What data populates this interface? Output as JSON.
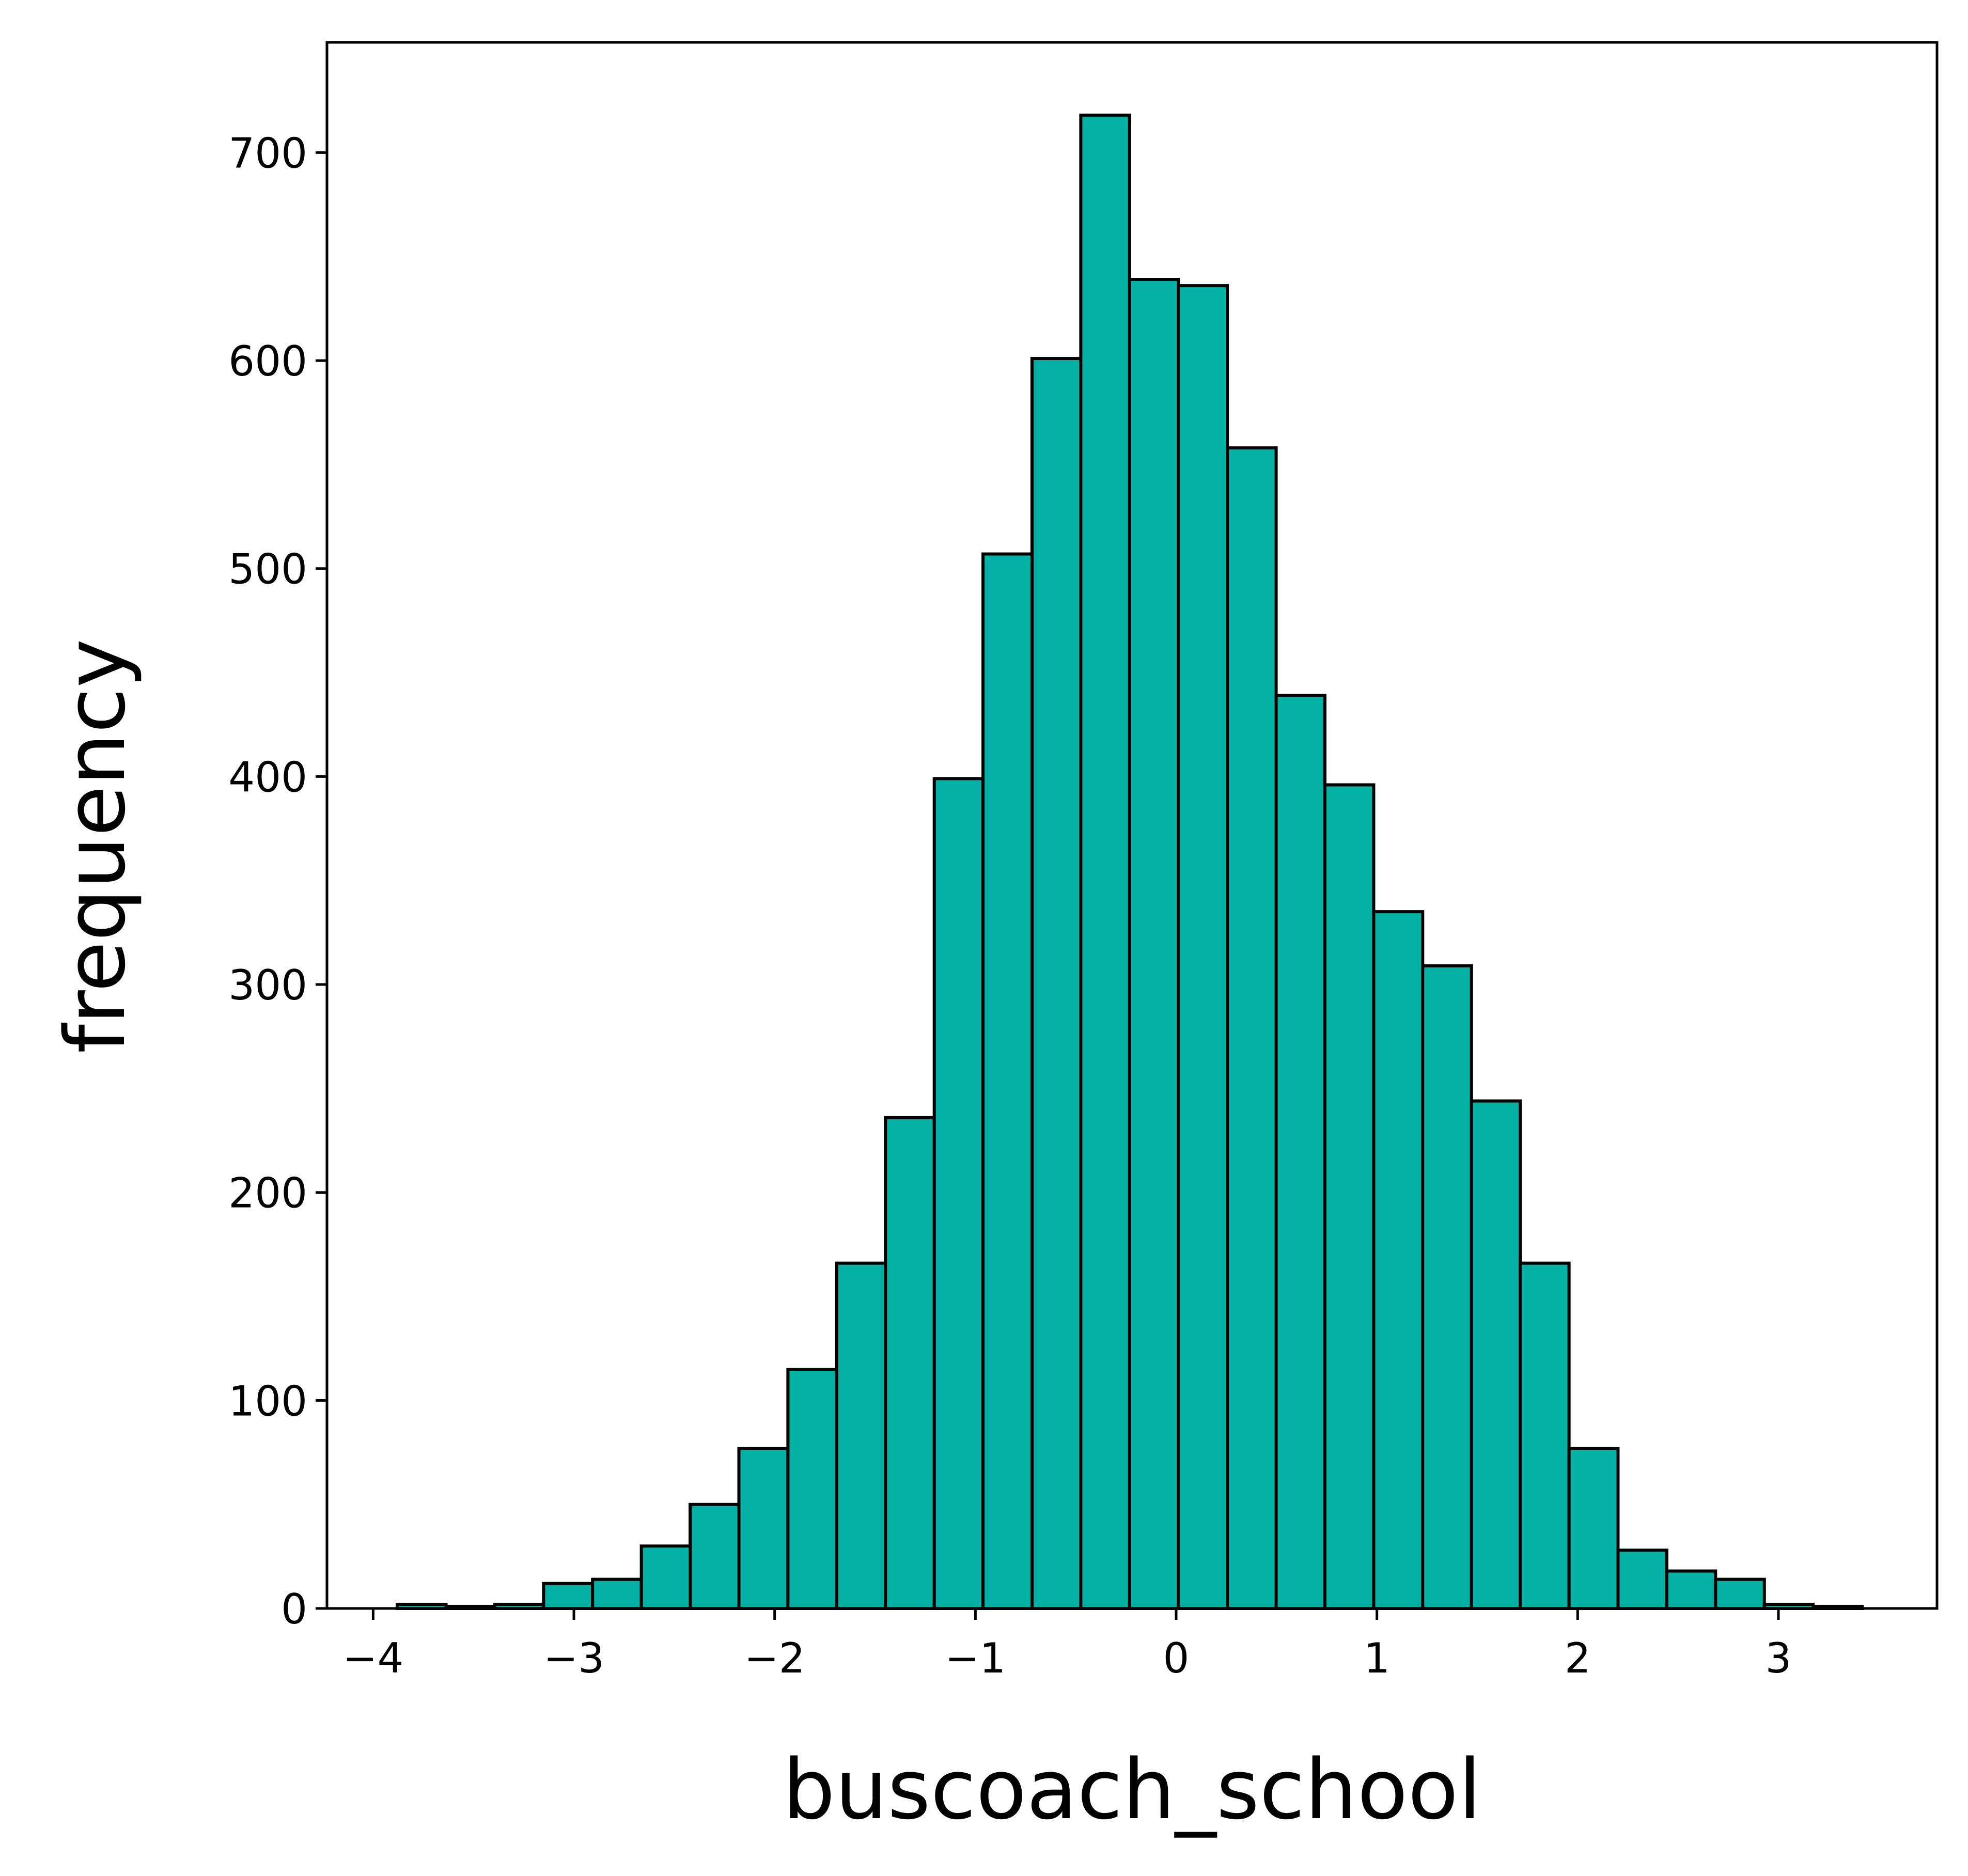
{
  "chart_data": {
    "type": "bar",
    "title": "",
    "xlabel": "buscoach_school",
    "ylabel": "frequency",
    "xlim": [
      -4.23,
      3.79
    ],
    "ylim": [
      0,
      753
    ],
    "xticks": [
      -4,
      -3,
      -2,
      -1,
      0,
      1,
      2,
      3
    ],
    "xtick_labels": [
      "−4",
      "−3",
      "−2",
      "−1",
      "0",
      "1",
      "2",
      "3"
    ],
    "yticks": [
      0,
      100,
      200,
      300,
      400,
      500,
      600,
      700
    ],
    "ytick_labels": [
      "0",
      "100",
      "200",
      "300",
      "400",
      "500",
      "600",
      "700"
    ],
    "grid": false,
    "bin_edges": [
      -3.88,
      -3.637,
      -3.394,
      -3.151,
      -2.907,
      -2.664,
      -2.421,
      -2.178,
      -1.934,
      -1.691,
      -1.448,
      -1.205,
      -0.962,
      -0.718,
      -0.475,
      -0.232,
      0.011,
      0.255,
      0.498,
      0.741,
      0.984,
      1.228,
      1.471,
      1.714,
      1.957,
      2.201,
      2.444,
      2.687,
      2.93,
      3.173,
      3.417
    ],
    "values": [
      2,
      1,
      2,
      12,
      14,
      30,
      50,
      77,
      115,
      166,
      236,
      399,
      507,
      601,
      718,
      639,
      636,
      558,
      439,
      396,
      335,
      309,
      244,
      166,
      77,
      28,
      18,
      14,
      2,
      1
    ],
    "colors": {
      "bar_fill": "#03b2a5",
      "bar_edge": "#000000",
      "axis": "#000000"
    }
  }
}
